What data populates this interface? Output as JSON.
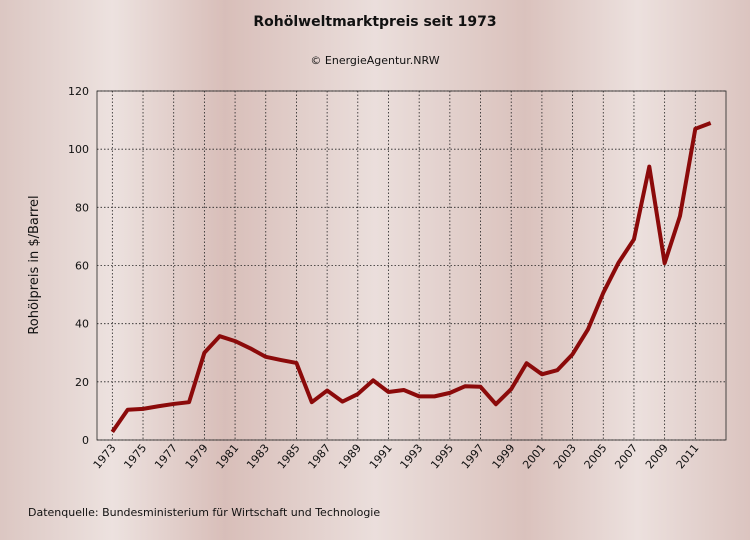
{
  "chart_data": {
    "type": "line",
    "title": "Rohölweltmarktpreis seit 1973",
    "subtitle": "© EnergieAgentur.NRW",
    "y_label": "Rohölpreis in $/Barrel",
    "source": "Datenquelle: Bundesministerium für Wirtschaft und Technologie",
    "x": [
      1973,
      1974,
      1975,
      1976,
      1977,
      1978,
      1979,
      1980,
      1981,
      1982,
      1983,
      1984,
      1985,
      1986,
      1987,
      1988,
      1989,
      1990,
      1991,
      1992,
      1993,
      1994,
      1995,
      1996,
      1997,
      1998,
      1999,
      2000,
      2001,
      2002,
      2003,
      2004,
      2005,
      2006,
      2007,
      2008,
      2009,
      2010,
      2011,
      2012
    ],
    "series": [
      {
        "color": "#8b0a0a",
        "values": [
          2.8,
          10.4,
          10.7,
          11.6,
          12.4,
          13,
          30,
          35.7,
          34,
          31.5,
          28.6,
          27.5,
          26.5,
          13,
          17,
          13.2,
          15.8,
          20.5,
          16.5,
          17.2,
          15,
          15,
          16.2,
          18.5,
          18.3,
          12.3,
          17.5,
          26.4,
          22.6,
          24,
          29.5,
          38,
          50.6,
          61,
          69,
          94,
          60.8,
          77,
          107,
          109
        ]
      }
    ],
    "xlim": [
      1972,
      2013
    ],
    "xticks": [
      1973,
      1975,
      1977,
      1979,
      1981,
      1983,
      1985,
      1987,
      1989,
      1991,
      1993,
      1995,
      1997,
      1999,
      2001,
      2003,
      2005,
      2007,
      2009,
      2011
    ],
    "ylim": [
      0,
      120
    ],
    "yticks": [
      0,
      20,
      40,
      60,
      80,
      100,
      120
    ],
    "grid": true
  }
}
